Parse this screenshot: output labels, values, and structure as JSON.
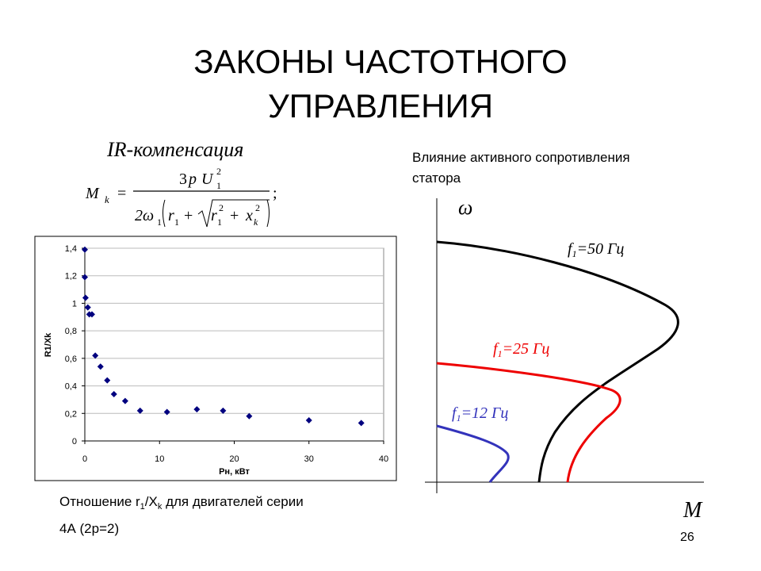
{
  "title": [
    "ЗАКОНЫ ЧАСТОТНОГО",
    "УПРАВЛЕНИЯ"
  ],
  "subtitle": "IR-компенсация",
  "formula": [
    "M",
    "k",
    "=",
    "3",
    "p",
    "U",
    "2",
    "1",
    "2ω",
    "1",
    "r",
    "1",
    "+",
    "r",
    "1",
    "2",
    "+",
    "x",
    "k",
    "2",
    ";"
  ],
  "chart_data": {
    "type": "scatter",
    "x_label": "Pн, кВт",
    "y_label": "R1/Xk",
    "color": "#00007f",
    "grid": true,
    "x": [
      0,
      0,
      0.1,
      0.4,
      0.6,
      0.95,
      1.4,
      2.1,
      3.0,
      3.9,
      5.4,
      7.4,
      11,
      15,
      18.5,
      22,
      30,
      37
    ],
    "values": [
      1.39,
      1.19,
      1.04,
      0.97,
      0.92,
      0.92,
      0.62,
      0.54,
      0.44,
      0.34,
      0.29,
      0.22,
      0.21,
      0.23,
      0.22,
      0.18,
      0.15,
      0.13
    ],
    "xlim": [
      0,
      40
    ],
    "xticks": [
      0,
      10,
      20,
      30,
      40
    ],
    "ylim": [
      0,
      1.4
    ],
    "yticks": [
      0,
      {
        "value": 0.2,
        "label": "0,2"
      },
      {
        "value": 0.4,
        "label": "0,4"
      },
      {
        "value": 0.6,
        "label": "0,6"
      },
      {
        "value": 0.8,
        "label": "0,8"
      },
      1,
      {
        "value": 1.2,
        "label": "1,2"
      },
      {
        "value": 1.4,
        "label": "1,4"
      }
    ]
  },
  "caption": [
    "Отношение r",
    "1",
    "/X",
    "k",
    " для двигателей серии",
    "4А (2р=2)"
  ],
  "diagram": {
    "heading": [
      "Влияние активного сопротивления",
      "статора"
    ],
    "y_axis": "ω",
    "x_axis": "M",
    "curves": [
      [
        "f",
        "1",
        "=50 Гц"
      ],
      [
        "f",
        "1",
        "=25 Гц"
      ],
      [
        "f",
        "1",
        "=12 Гц"
      ]
    ]
  },
  "page_number": "26"
}
